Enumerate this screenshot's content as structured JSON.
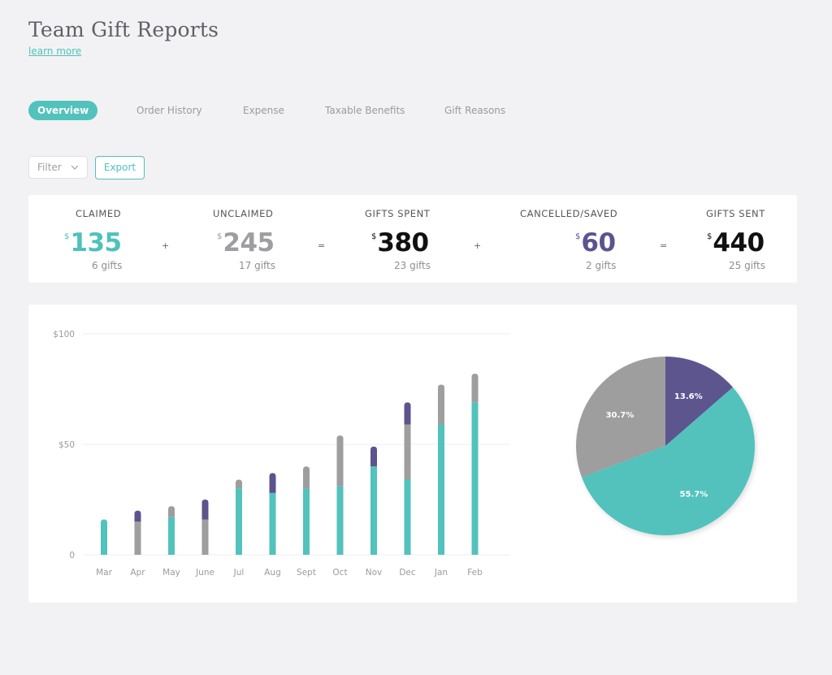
{
  "page": {
    "title": "Team Gift Reports",
    "learn_more": "learn more"
  },
  "tabs": [
    {
      "label": "Overview",
      "active": true
    },
    {
      "label": "Order History",
      "active": false
    },
    {
      "label": "Expense",
      "active": false
    },
    {
      "label": "Taxable Benefits",
      "active": false
    },
    {
      "label": "Gift Reasons",
      "active": false
    }
  ],
  "toolbar": {
    "filter_label": "Filter",
    "export_label": "Export"
  },
  "summary": {
    "currency_symbol": "$",
    "stats": [
      {
        "label": "CLAIMED",
        "amount": "135",
        "count": "6 gifts",
        "color": "#4fc1bb"
      },
      {
        "label": "UNCLAIMED",
        "amount": "245",
        "count": "17 gifts",
        "color": "#9e9ea2"
      },
      {
        "label": "GIFTS SPENT",
        "amount": "380",
        "count": "23 gifts",
        "color": "#111111"
      },
      {
        "label": "CANCELLED/SAVED",
        "amount": "60",
        "count": "2 gifts",
        "color": "#5b548e"
      },
      {
        "label": "GIFTS SENT",
        "amount": "440",
        "count": "25 gifts",
        "color": "#111111"
      }
    ],
    "operators": [
      "+",
      "=",
      "+",
      "="
    ]
  },
  "colors": {
    "claimed": "#52c2bc",
    "unclaimed": "#9e9e9e",
    "cancelled": "#5b548e",
    "accent": "#4fc1bb"
  },
  "chart_data": [
    {
      "type": "bar",
      "stacked": true,
      "categories": [
        "Mar",
        "Apr",
        "May",
        "June",
        "Jul",
        "Aug",
        "Sept",
        "Oct",
        "Nov",
        "Dec",
        "Jan",
        "Feb"
      ],
      "y_ticks": [
        "$100",
        "$50",
        "0"
      ],
      "y_tick_values": [
        100,
        50,
        0
      ],
      "ylim": [
        0,
        100
      ],
      "grid": true,
      "series": [
        {
          "key": "claimed",
          "values": [
            16,
            0,
            17,
            0,
            30,
            28,
            30,
            31,
            40,
            34,
            59,
            69
          ]
        },
        {
          "key": "unclaimed",
          "values": [
            0,
            15,
            5,
            16,
            4,
            0,
            10,
            23,
            0,
            25,
            18,
            13
          ]
        },
        {
          "key": "cancelled",
          "values": [
            0,
            5,
            0,
            9,
            0,
            9,
            0,
            0,
            9,
            10,
            0,
            0
          ]
        }
      ]
    },
    {
      "type": "pie",
      "slices": [
        {
          "key": "cancelled",
          "label": "13.6%",
          "value": 13.6
        },
        {
          "key": "claimed",
          "label": "55.7%",
          "value": 55.7
        },
        {
          "key": "unclaimed",
          "label": "30.7%",
          "value": 30.7
        }
      ]
    }
  ]
}
